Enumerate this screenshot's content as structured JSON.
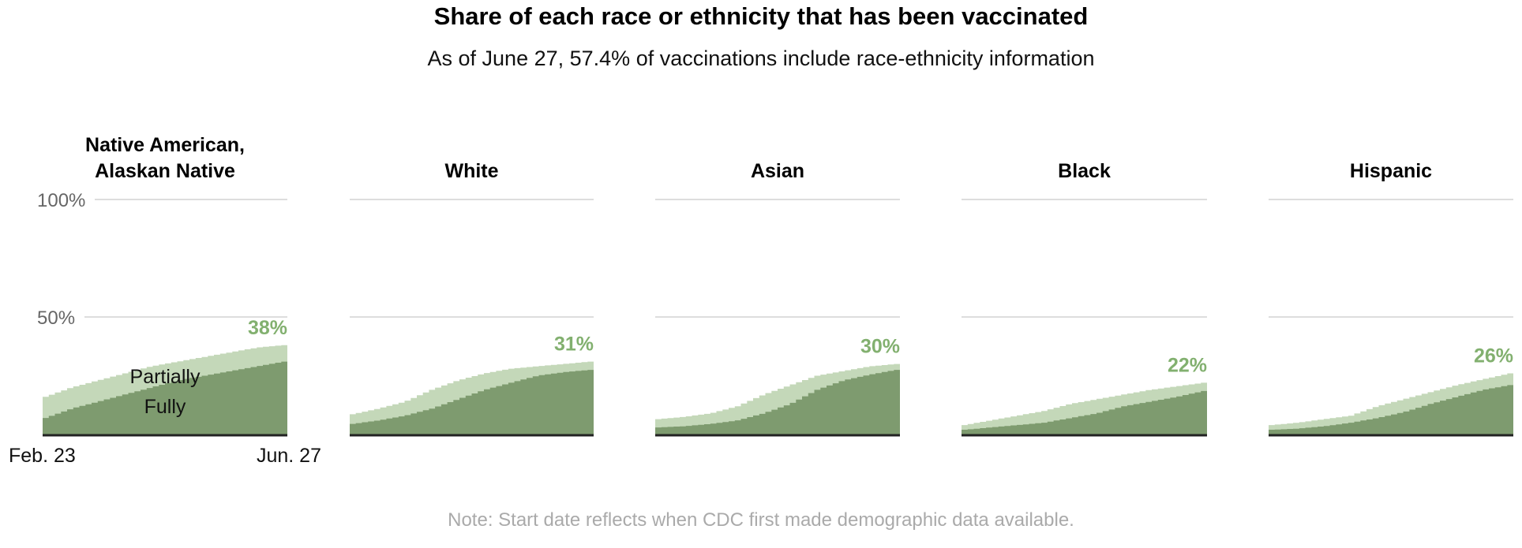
{
  "chart_data": {
    "type": "area",
    "title": "Share of each race or ethnicity that has been vaccinated",
    "subtitle": "As of June 27, 57.4% of vaccinations include race-ethnicity information",
    "note": "Note: Start date reflects when CDC first made demographic data available.",
    "ylim": [
      0,
      100
    ],
    "yticks": [
      {
        "value": 100,
        "label": "100%"
      },
      {
        "value": 50,
        "label": "50%"
      }
    ],
    "x_start_label": "Feb. 23",
    "x_end_label": "Jun. 27",
    "legend": {
      "partially": "Partially",
      "fully": "Fully"
    },
    "colors": {
      "partially": "#c4d8b9",
      "fully": "#7e9b6f",
      "label": "#82b06f",
      "grid": "#dddddd",
      "baseline": "#222222"
    },
    "panels": [
      {
        "name": "Native American, Alaskan Native",
        "header_lines": [
          "Native American,",
          "Alaskan Native"
        ],
        "final_label": "38%",
        "at_least_one_dose": [
          16,
          20,
          23,
          26,
          29,
          31,
          33,
          35,
          37,
          38
        ],
        "fully": [
          7,
          11,
          14,
          17,
          20,
          23,
          25,
          27,
          29,
          31
        ]
      },
      {
        "name": "White",
        "header_lines": [
          "White"
        ],
        "final_label": "31%",
        "at_least_one_dose": [
          8.6,
          11,
          14,
          19,
          23,
          26,
          28,
          29,
          30,
          31
        ],
        "fully": [
          4.5,
          6,
          8,
          11,
          15,
          19,
          22,
          25,
          26.5,
          27.5
        ]
      },
      {
        "name": "Asian",
        "header_lines": [
          "Asian"
        ],
        "final_label": "30%",
        "at_least_one_dose": [
          6.5,
          7.5,
          9,
          12,
          17,
          21,
          25,
          27,
          29,
          30
        ],
        "fully": [
          3,
          3.5,
          4.5,
          6,
          9,
          13,
          19,
          23,
          25.5,
          27.5
        ]
      },
      {
        "name": "Black",
        "header_lines": [
          "Black"
        ],
        "final_label": "22%",
        "at_least_one_dose": [
          4,
          6,
          8,
          10,
          13,
          15,
          17,
          19,
          20.5,
          22
        ],
        "fully": [
          2,
          3,
          4,
          5,
          7,
          9,
          12,
          14,
          16,
          18.5
        ]
      },
      {
        "name": "Hispanic",
        "header_lines": [
          "Hispanic"
        ],
        "final_label": "26%",
        "at_least_one_dose": [
          4,
          5,
          6.5,
          8,
          12,
          15,
          18,
          21,
          23.5,
          26
        ],
        "fully": [
          2,
          2.5,
          3.5,
          5,
          7,
          9.5,
          13,
          16,
          19,
          21
        ]
      }
    ]
  }
}
